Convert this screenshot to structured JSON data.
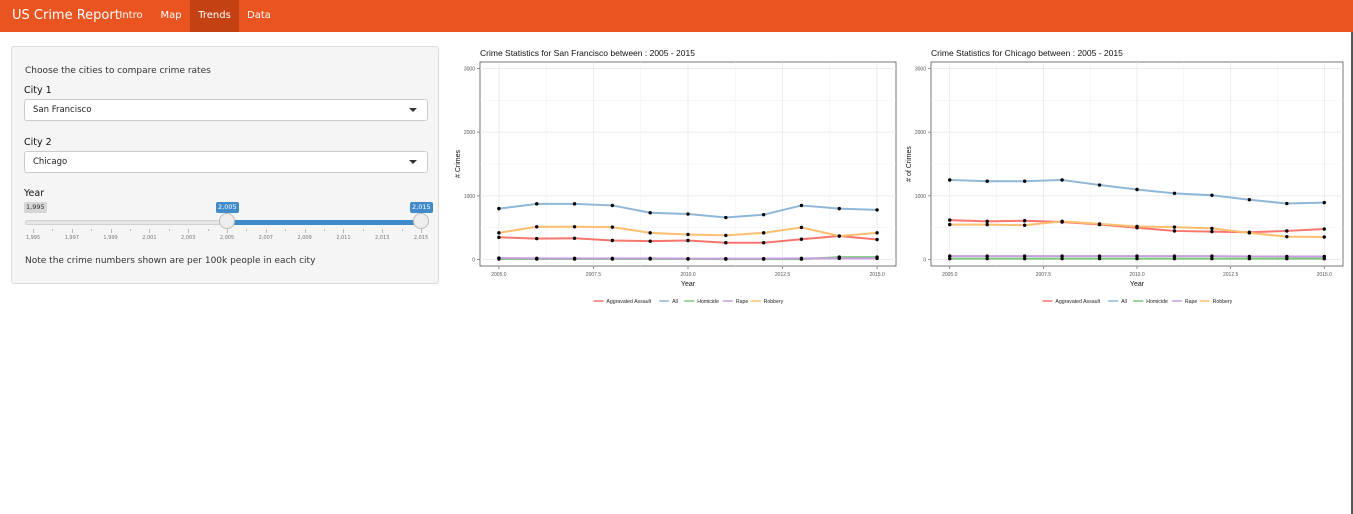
{
  "navbar": {
    "brand": "US Crime Report",
    "tabs": [
      {
        "label": "Intro",
        "active": false
      },
      {
        "label": "Map",
        "active": false
      },
      {
        "label": "Trends",
        "active": true
      },
      {
        "label": "Data",
        "active": false
      }
    ],
    "color": "#e95420",
    "active_color": "#c34113"
  },
  "sidebar": {
    "intro": "Choose the cities to compare crime rates",
    "city1": {
      "label": "City 1",
      "value": "San Francisco"
    },
    "city2": {
      "label": "City 2",
      "value": "Chicago"
    },
    "year": {
      "label": "Year",
      "min": "1,995",
      "max": "2,015",
      "range": [
        2005,
        2015
      ],
      "from_label": "2,005",
      "to_label": "2,015",
      "ticks": [
        "1,995",
        "1,997",
        "1,999",
        "2,001",
        "2,003",
        "2,005",
        "2,007",
        "2,009",
        "2,011",
        "2,013",
        "2,015"
      ]
    },
    "note": "Note the crime numbers shown are per 100k people in each city"
  },
  "chart_data": [
    {
      "type": "line",
      "title": "Crime Statistics for San Francisco between : 2005 - 2015",
      "xlabel": "Year",
      "ylabel": "# Crimes",
      "xlim": [
        2004.5,
        2015.5
      ],
      "ylim": [
        -100,
        3100
      ],
      "xticks": [
        2005,
        2007.5,
        2010,
        2012.5,
        2015
      ],
      "xtick_labels": [
        "2005.0",
        "2007.5",
        "2010.0",
        "2012.5",
        "2015.0"
      ],
      "yticks": [
        0,
        1000,
        2000,
        3000
      ],
      "ytick_labels": [
        "0",
        "1000",
        "2000",
        "3000"
      ],
      "grid": true,
      "legend": "bottom",
      "x": [
        2005,
        2006,
        2007,
        2008,
        2009,
        2010,
        2011,
        2012,
        2013,
        2014,
        2015
      ],
      "series": [
        {
          "name": "Aggravated Assault",
          "color": "#f8766d",
          "values": [
            350,
            330,
            335,
            300,
            290,
            300,
            265,
            265,
            320,
            370,
            315
          ]
        },
        {
          "name": "All",
          "color": "#8fb8d8",
          "values": [
            800,
            875,
            875,
            850,
            735,
            715,
            660,
            705,
            850,
            800,
            780
          ]
        },
        {
          "name": "Homicide",
          "color": "#7cc87c",
          "values": [
            10,
            10,
            10,
            10,
            10,
            10,
            8,
            8,
            8,
            40,
            40
          ]
        },
        {
          "name": "Rape",
          "color": "#c79ee0",
          "values": [
            25,
            20,
            20,
            20,
            20,
            15,
            15,
            15,
            20,
            20,
            20
          ]
        },
        {
          "name": "Robbery",
          "color": "#fdbf6f",
          "values": [
            420,
            515,
            515,
            510,
            420,
            395,
            380,
            420,
            505,
            370,
            420
          ]
        }
      ]
    },
    {
      "type": "line",
      "title": "Crime Statistics for Chicago between : 2005 - 2015",
      "xlabel": "Year",
      "ylabel": "# of Crimes",
      "xlim": [
        2004.5,
        2015.5
      ],
      "ylim": [
        -100,
        3100
      ],
      "xticks": [
        2005,
        2007.5,
        2010,
        2012.5,
        2015
      ],
      "xtick_labels": [
        "2005.0",
        "2007.5",
        "2010.0",
        "2012.5",
        "2015.0"
      ],
      "yticks": [
        0,
        1000,
        2000,
        3000
      ],
      "ytick_labels": [
        "0",
        "1000",
        "2000",
        "3000"
      ],
      "grid": true,
      "legend": "bottom",
      "x": [
        2005,
        2006,
        2007,
        2008,
        2009,
        2010,
        2011,
        2012,
        2013,
        2014,
        2015
      ],
      "series": [
        {
          "name": "Aggravated Assault",
          "color": "#f8766d",
          "values": [
            620,
            600,
            610,
            590,
            550,
            500,
            450,
            440,
            430,
            450,
            480
          ]
        },
        {
          "name": "All",
          "color": "#8fb8d8",
          "values": [
            1250,
            1230,
            1230,
            1250,
            1170,
            1100,
            1040,
            1010,
            940,
            880,
            895
          ]
        },
        {
          "name": "Homicide",
          "color": "#7cc87c",
          "values": [
            15,
            15,
            15,
            15,
            15,
            15,
            15,
            15,
            15,
            15,
            15
          ]
        },
        {
          "name": "Rape",
          "color": "#c79ee0",
          "values": [
            55,
            55,
            55,
            55,
            55,
            55,
            55,
            55,
            50,
            50,
            50
          ]
        },
        {
          "name": "Robbery",
          "color": "#fdbf6f",
          "values": [
            550,
            550,
            540,
            600,
            560,
            520,
            510,
            490,
            420,
            360,
            355
          ]
        }
      ]
    }
  ]
}
